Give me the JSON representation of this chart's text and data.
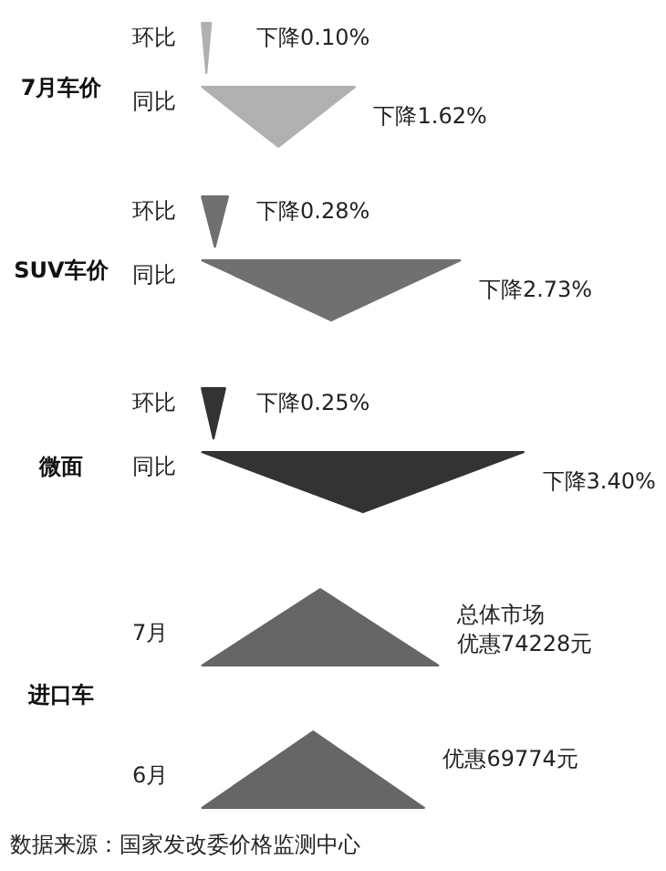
{
  "chart_data": [
    {
      "type": "other",
      "title": "7月车价",
      "categories": [
        "环比",
        "同比"
      ],
      "values": [
        0.1,
        1.62
      ],
      "value_labels": [
        "下降0.10%",
        "下降1.62%"
      ],
      "color": "#b0b0b0"
    },
    {
      "type": "other",
      "title": "SUV车价",
      "categories": [
        "环比",
        "同比"
      ],
      "values": [
        0.28,
        2.73
      ],
      "value_labels": [
        "下降0.28%",
        "下降2.73%"
      ],
      "color": "#707070"
    },
    {
      "type": "other",
      "title": "微面",
      "categories": [
        "环比",
        "同比"
      ],
      "values": [
        0.25,
        3.4
      ],
      "value_labels": [
        "下降0.25%",
        "下降3.40%"
      ],
      "color": "#333333"
    },
    {
      "type": "other",
      "title": "进口车",
      "categories": [
        "7月",
        "6月"
      ],
      "values": [
        74228,
        69774
      ],
      "value_labels": [
        "优惠74228元",
        "优惠69774元"
      ],
      "color": "#666666",
      "annotations": [
        {
          "text": "总体市场",
          "x": "7月"
        },
        "数据来源：国家发改委价格监测中心"
      ]
    }
  ]
}
